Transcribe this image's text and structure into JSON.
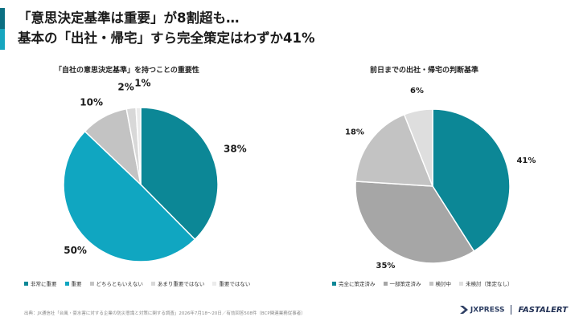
{
  "header": {
    "line1": "「意思決定基準は重要」が8割超も…",
    "line2": "基本の「出社・帰宅」すら完全策定はわずか41%"
  },
  "chart_data": [
    {
      "type": "pie",
      "title": "「自社の意思決定基準」を持つことの重要性",
      "categories": [
        "非常に重要",
        "重要",
        "どちらともいえない",
        "あまり重要ではない",
        "重要ではない"
      ],
      "values": [
        38,
        50,
        10,
        2,
        1
      ],
      "labels": [
        "38%",
        "50%",
        "10%",
        "2%",
        "1%"
      ],
      "colors": [
        "#0c8796",
        "#10a6c1",
        "#c3c3c3",
        "#d8d8d8",
        "#ebebeb"
      ],
      "legend": "bottom"
    },
    {
      "type": "pie",
      "title": "前日までの出社・帰宅の判断基準",
      "categories": [
        "完全に策定済み",
        "一部策定済み",
        "検討中",
        "未検討（策定なし）"
      ],
      "values": [
        41,
        35,
        18,
        6
      ],
      "labels": [
        "41%",
        "35%",
        "18%",
        "6%"
      ],
      "colors": [
        "#0c8796",
        "#a6a6a6",
        "#c3c3c3",
        "#dedede"
      ],
      "legend": "bottom"
    }
  ],
  "footer": {
    "source": "出典：JX通信社「台風・豪水害に対する企業の防災意識と対策に関する調査」2026年7月18〜20日／有効回答508件（BCP関連業務従事者）",
    "logo1": "JXPRESS",
    "logo2": "FASTALERT"
  }
}
